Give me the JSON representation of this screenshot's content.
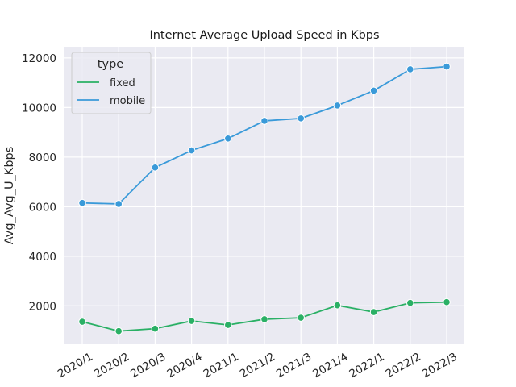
{
  "chart_data": {
    "type": "line",
    "title": "Internet Average Upload Speed in Kbps",
    "xlabel": "",
    "ylabel": "Avg_Avg_U_Kbps",
    "categories": [
      "2020/1",
      "2020/2",
      "2020/3",
      "2020/4",
      "2021/1",
      "2021/2",
      "2021/3",
      "2021/4",
      "2022/1",
      "2022/2",
      "2022/3"
    ],
    "y_ticks": [
      2000,
      4000,
      6000,
      8000,
      10000,
      12000
    ],
    "ylim": [
      450,
      12450
    ],
    "grid": true,
    "legend": {
      "title": "type",
      "placement": "top-left"
    },
    "series": [
      {
        "name": "fixed",
        "color": "#2ab065",
        "values": [
          1360,
          980,
          1080,
          1390,
          1230,
          1460,
          1520,
          2020,
          1750,
          2120,
          2150
        ]
      },
      {
        "name": "mobile",
        "color": "#3a9ad9",
        "values": [
          6150,
          6110,
          7580,
          8270,
          8750,
          9460,
          9560,
          10080,
          10680,
          11540,
          11650
        ]
      }
    ]
  }
}
